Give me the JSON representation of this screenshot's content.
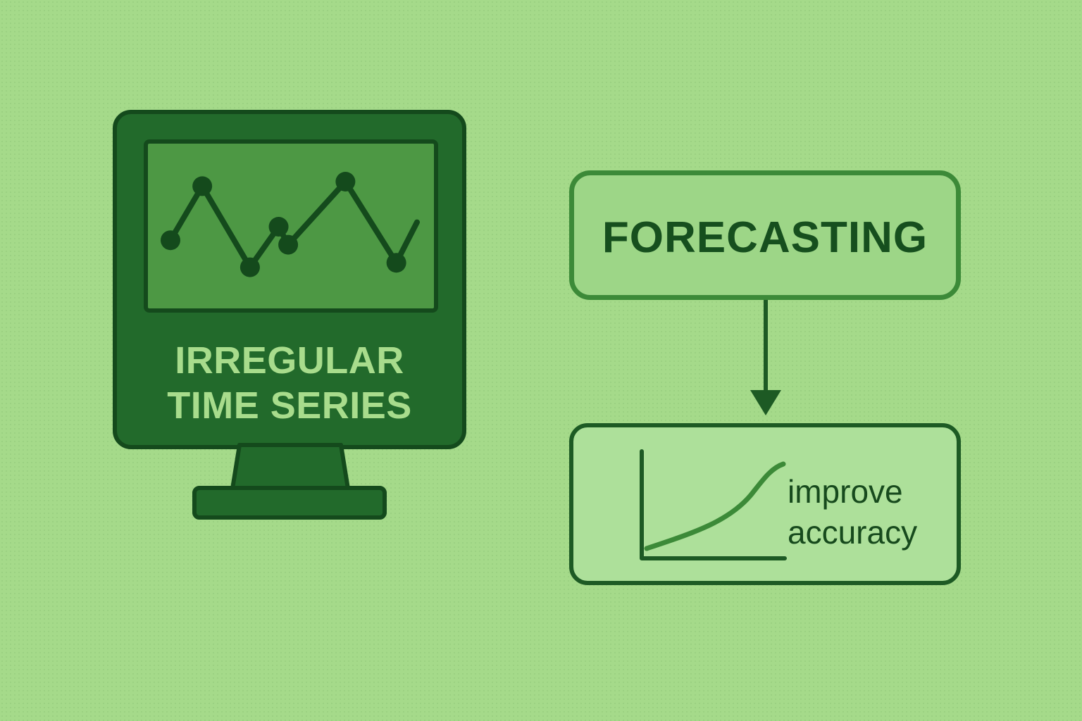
{
  "monitor": {
    "label_line1": "IRREGULAR",
    "label_line2": "TIME SERIES",
    "sparkline": {
      "points": [
        [
          1,
          0.35
        ],
        [
          3,
          0.95
        ],
        [
          6,
          0.05
        ],
        [
          7.8,
          0.5
        ],
        [
          8.4,
          0.3
        ],
        [
          12,
          1.0
        ],
        [
          15.2,
          0.1
        ],
        [
          16.5,
          0.55
        ]
      ],
      "markers": [
        0,
        1,
        2,
        3,
        4,
        5,
        6
      ]
    }
  },
  "forecasting": {
    "title": "FORECASTING"
  },
  "result": {
    "line1": "improve",
    "line2": "accuracy"
  },
  "colors": {
    "background": "#a5da8a",
    "dark_green": "#144a1c",
    "monitor_green": "#226a2b",
    "screen_green": "#4d9844",
    "accent_green": "#3c8a38",
    "label_light": "#a8dc8c"
  }
}
